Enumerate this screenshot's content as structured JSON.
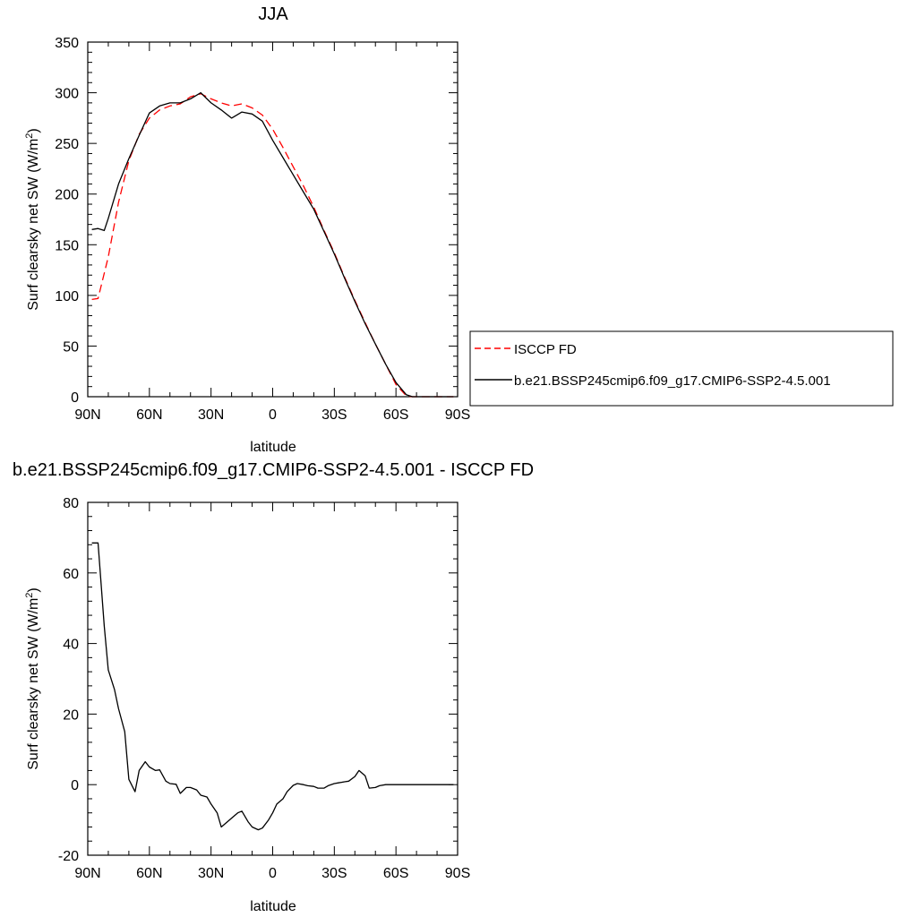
{
  "chart_data": [
    {
      "type": "line",
      "title": "JJA",
      "xlabel": "latitude",
      "ylabel": "Surf clearsky net SW (W/m",
      "ylabel_sup": "2",
      "ylabel_end": ")",
      "xlim": [
        90,
        -90
      ],
      "ylim": [
        0,
        350
      ],
      "xtick_values": [
        90,
        60,
        30,
        0,
        -30,
        -60,
        -90
      ],
      "xtick_labels": [
        "90N",
        "60N",
        "30N",
        "0",
        "30S",
        "60S",
        "90S"
      ],
      "ytick_values": [
        0,
        50,
        100,
        150,
        200,
        250,
        300,
        350
      ],
      "ytick_labels": [
        "0",
        "50",
        "100",
        "150",
        "200",
        "250",
        "300",
        "350"
      ],
      "grid": false,
      "legend_position": "right",
      "series": [
        {
          "name": "ISCCP FD",
          "color": "#ff0000",
          "dash": "dashed",
          "x": [
            88,
            85,
            80,
            75,
            70,
            65,
            60,
            55,
            50,
            45,
            40,
            35,
            30,
            25,
            20,
            15,
            10,
            5,
            0,
            -5,
            -10,
            -15,
            -20,
            -25,
            -30,
            -35,
            -40,
            -45,
            -50,
            -55,
            -60,
            -65,
            -68,
            -72,
            -80,
            -88
          ],
          "y": [
            96,
            97,
            138,
            192,
            233,
            259,
            275,
            283,
            287,
            289,
            296,
            299,
            294,
            290,
            287,
            289,
            285,
            278,
            264,
            246,
            227,
            208,
            187,
            164,
            142,
            118,
            95,
            73,
            52,
            32,
            12,
            1,
            0,
            0,
            0,
            0
          ]
        },
        {
          "name": "b.e21.BSSP245cmip6.f09_g17.CMIP6-SSP2-4.5.001",
          "color": "#000000",
          "dash": "solid",
          "x": [
            88,
            85,
            82,
            80,
            75,
            70,
            65,
            60,
            55,
            50,
            45,
            40,
            35,
            30,
            25,
            20,
            15,
            10,
            5,
            0,
            -5,
            -10,
            -15,
            -20,
            -25,
            -30,
            -35,
            -40,
            -45,
            -50,
            -55,
            -60,
            -65,
            -68,
            -72,
            -80,
            -88
          ],
          "y": [
            165,
            166,
            164,
            176,
            210,
            235,
            258,
            280,
            287,
            290,
            290,
            294,
            300,
            290,
            283,
            275,
            281,
            279,
            272,
            253,
            236,
            219,
            202,
            185,
            163,
            141,
            117,
            94,
            72,
            52,
            32,
            14,
            2,
            0,
            0,
            0,
            0
          ]
        }
      ]
    },
    {
      "type": "line",
      "title": "b.e21.BSSP245cmip6.f09_g17.CMIP6-SSP2-4.5.001 - ISCCP FD",
      "xlabel": "latitude",
      "ylabel": "Surf clearsky net SW (W/m",
      "ylabel_sup": "2",
      "ylabel_end": ")",
      "xlim": [
        90,
        -90
      ],
      "ylim": [
        -20,
        80
      ],
      "xtick_values": [
        90,
        60,
        30,
        0,
        -30,
        -60,
        -90
      ],
      "xtick_labels": [
        "90N",
        "60N",
        "30N",
        "0",
        "30S",
        "60S",
        "90S"
      ],
      "ytick_values": [
        -20,
        0,
        20,
        40,
        60,
        80
      ],
      "ytick_labels": [
        "-20",
        "0",
        "20",
        "40",
        "60",
        "80"
      ],
      "grid": false,
      "series": [
        {
          "color": "#000000",
          "dash": "solid",
          "x": [
            88,
            85,
            82,
            80,
            77,
            75,
            72,
            70,
            67,
            65,
            62,
            60,
            57,
            55,
            52,
            50,
            47,
            45,
            42,
            40,
            37,
            35,
            32,
            30,
            27,
            25,
            22,
            20,
            17,
            15,
            12,
            10,
            7,
            5,
            2,
            0,
            -2,
            -5,
            -7,
            -10,
            -12,
            -15,
            -17,
            -20,
            -22,
            -25,
            -27,
            -30,
            -32,
            -35,
            -37,
            -40,
            -42,
            -45,
            -47,
            -50,
            -52,
            -55,
            -57,
            -60,
            -62,
            -65,
            -67,
            -70,
            -75,
            -80,
            -85,
            -88
          ],
          "y": [
            68.5,
            68.5,
            45,
            32.5,
            27,
            21.5,
            15,
            1.5,
            -2,
            4,
            6.5,
            5,
            4,
            4.2,
            1,
            0.3,
            0.1,
            -2.5,
            -0.8,
            -0.8,
            -1.5,
            -3,
            -3.5,
            -5.5,
            -8,
            -12,
            -10.5,
            -9.5,
            -8,
            -7.5,
            -10.5,
            -12,
            -12.8,
            -12.3,
            -10,
            -8,
            -5.5,
            -4,
            -2,
            -0.2,
            0.3,
            0,
            -0.3,
            -0.5,
            -1,
            -1,
            -0.3,
            0.3,
            0.5,
            0.8,
            1,
            2.3,
            4,
            2.5,
            -1,
            -0.8,
            -0.3,
            0,
            0,
            0,
            0,
            0,
            0,
            0,
            0,
            0,
            0,
            0
          ]
        }
      ]
    }
  ]
}
